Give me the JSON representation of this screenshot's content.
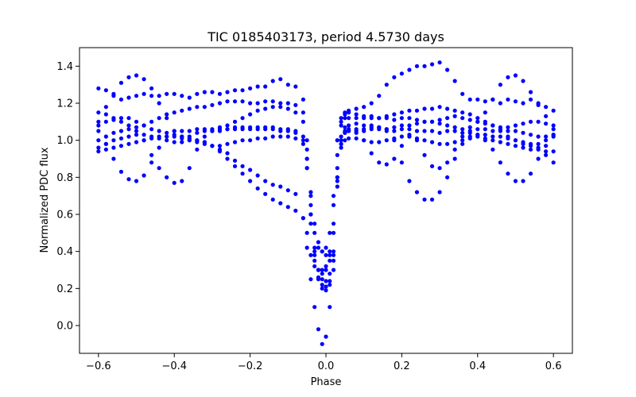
{
  "chart_data": {
    "type": "scatter",
    "title": "TIC 0185403173, period 4.5730 days",
    "xlabel": "Phase",
    "ylabel": "Normalized PDC flux",
    "xlim": [
      -0.65,
      0.65
    ],
    "ylim": [
      -0.15,
      1.5
    ],
    "xticks": [
      "−0.6",
      "−0.4",
      "−0.2",
      "0.0",
      "0.2",
      "0.4",
      "0.6"
    ],
    "xtick_values": [
      -0.6,
      -0.4,
      -0.2,
      0.0,
      0.2,
      0.4,
      0.6
    ],
    "yticks": [
      "0.0",
      "0.2",
      "0.4",
      "0.6",
      "0.8",
      "1.0",
      "1.2",
      "1.4"
    ],
    "ytick_values": [
      0.0,
      0.2,
      0.4,
      0.6,
      0.8,
      1.0,
      1.2,
      1.4
    ],
    "grid": false,
    "marker_color": "#0000ff",
    "series": [
      {
        "x": [
          -0.6,
          -0.58,
          -0.56,
          -0.54,
          -0.52,
          -0.5,
          -0.48,
          -0.46,
          -0.44,
          -0.42,
          -0.4,
          -0.38,
          -0.36,
          -0.34,
          -0.32,
          -0.3,
          -0.28,
          -0.26,
          -0.24,
          -0.22,
          -0.2,
          -0.18,
          -0.16,
          -0.14,
          -0.12,
          -0.1,
          -0.08,
          -0.06,
          -0.05,
          -0.04,
          -0.03,
          -0.02,
          -0.01,
          0.0,
          0.01,
          0.02,
          0.03,
          0.04,
          0.05,
          0.06,
          0.08,
          0.1,
          0.12,
          0.14,
          0.16,
          0.18,
          0.2,
          0.22,
          0.24,
          0.26,
          0.28,
          0.3,
          0.32,
          0.34,
          0.36,
          0.38,
          0.4,
          0.42,
          0.44,
          0.46,
          0.48,
          0.5,
          0.52,
          0.54,
          0.56,
          0.58,
          0.6
        ],
        "y": [
          1.28,
          1.27,
          1.24,
          1.22,
          1.23,
          1.24,
          1.25,
          1.24,
          1.24,
          1.25,
          1.25,
          1.24,
          1.23,
          1.25,
          1.26,
          1.26,
          1.25,
          1.26,
          1.27,
          1.27,
          1.28,
          1.29,
          1.29,
          1.32,
          1.33,
          1.3,
          1.29,
          1.22,
          0.95,
          0.72,
          0.55,
          0.45,
          0.4,
          0.38,
          0.4,
          0.65,
          1.0,
          1.1,
          1.14,
          1.16,
          1.17,
          1.18,
          1.2,
          1.24,
          1.3,
          1.34,
          1.36,
          1.38,
          1.4,
          1.4,
          1.41,
          1.42,
          1.38,
          1.32,
          1.25,
          1.22,
          1.22,
          1.21,
          1.22,
          1.2,
          1.22,
          1.21,
          1.2,
          1.22,
          1.19,
          1.18,
          1.16
        ]
      },
      {
        "x": [
          -0.6,
          -0.58,
          -0.56,
          -0.54,
          -0.52,
          -0.5,
          -0.48,
          -0.46,
          -0.44,
          -0.42,
          -0.4,
          -0.38,
          -0.36,
          -0.34,
          -0.32,
          -0.3,
          -0.28,
          -0.26,
          -0.24,
          -0.22,
          -0.2,
          -0.18,
          -0.16,
          -0.14,
          -0.12,
          -0.1,
          -0.08,
          -0.06,
          -0.05,
          -0.04,
          -0.03,
          -0.02,
          -0.01,
          0.0,
          0.01,
          0.02,
          0.03,
          0.04,
          0.05,
          0.06,
          0.08,
          0.1,
          0.12,
          0.14,
          0.16,
          0.18,
          0.2,
          0.22,
          0.24,
          0.26,
          0.28,
          0.3,
          0.32,
          0.34,
          0.36,
          0.38,
          0.4,
          0.42,
          0.44,
          0.46,
          0.48,
          0.5,
          0.52,
          0.54,
          0.56,
          0.58,
          0.6
        ],
        "y": [
          1.1,
          1.18,
          1.25,
          1.31,
          1.34,
          1.35,
          1.33,
          1.28,
          1.2,
          1.12,
          1.05,
          1.02,
          1.02,
          1.04,
          1.05,
          1.06,
          1.07,
          1.08,
          1.1,
          1.12,
          1.14,
          1.16,
          1.17,
          1.18,
          1.18,
          1.17,
          1.15,
          1.1,
          0.9,
          0.6,
          0.4,
          0.3,
          0.28,
          0.3,
          0.35,
          0.5,
          0.85,
          1.02,
          1.07,
          1.08,
          1.09,
          1.08,
          1.08,
          1.07,
          1.06,
          1.07,
          1.08,
          1.08,
          1.09,
          1.1,
          1.1,
          1.09,
          1.08,
          1.07,
          1.06,
          1.07,
          1.1,
          1.15,
          1.22,
          1.3,
          1.34,
          1.35,
          1.32,
          1.26,
          1.2,
          1.13,
          1.06
        ]
      },
      {
        "x": [
          -0.6,
          -0.58,
          -0.56,
          -0.54,
          -0.52,
          -0.5,
          -0.48,
          -0.46,
          -0.44,
          -0.42,
          -0.4,
          -0.38,
          -0.36,
          -0.34,
          -0.32,
          -0.3,
          -0.28,
          -0.26,
          -0.24,
          -0.22,
          -0.2,
          -0.18,
          -0.16,
          -0.14,
          -0.12,
          -0.1,
          -0.08,
          -0.06,
          -0.05,
          -0.04,
          -0.03,
          -0.02,
          -0.01,
          0.0,
          0.01,
          0.02,
          0.03,
          0.04,
          0.05,
          0.06,
          0.08,
          0.1,
          0.12,
          0.14,
          0.16,
          0.18,
          0.2,
          0.22,
          0.24,
          0.26,
          0.28,
          0.3,
          0.32,
          0.34,
          0.36,
          0.38,
          0.4,
          0.42,
          0.44,
          0.46,
          0.48,
          0.5,
          0.52,
          0.54,
          0.56,
          0.58,
          0.6
        ],
        "y": [
          1.05,
          0.98,
          0.9,
          0.83,
          0.79,
          0.78,
          0.81,
          0.88,
          0.96,
          1.02,
          1.05,
          1.05,
          1.05,
          1.06,
          1.06,
          1.05,
          1.05,
          1.06,
          1.06,
          1.06,
          1.07,
          1.07,
          1.06,
          1.06,
          1.05,
          1.05,
          1.04,
          1.0,
          0.85,
          0.55,
          0.35,
          0.25,
          0.2,
          0.19,
          0.22,
          0.35,
          0.75,
          0.98,
          1.04,
          1.05,
          1.05,
          1.05,
          1.06,
          1.06,
          1.05,
          1.05,
          1.06,
          1.06,
          1.05,
          1.05,
          1.05,
          1.04,
          1.05,
          1.05,
          1.04,
          1.04,
          1.03,
          1.0,
          0.95,
          0.88,
          0.82,
          0.78,
          0.78,
          0.82,
          0.9,
          0.97,
          1.02
        ]
      },
      {
        "x": [
          -0.6,
          -0.58,
          -0.56,
          -0.54,
          -0.52,
          -0.5,
          -0.48,
          -0.46,
          -0.44,
          -0.42,
          -0.4,
          -0.38,
          -0.36,
          -0.34,
          -0.32,
          -0.3,
          -0.28,
          -0.26,
          -0.24,
          -0.22,
          -0.2,
          -0.18,
          -0.16,
          -0.14,
          -0.12,
          -0.1,
          -0.08,
          -0.06,
          -0.05,
          -0.04,
          -0.03,
          -0.02,
          -0.01,
          0.0,
          0.01,
          0.02,
          0.03,
          0.04,
          0.05,
          0.06,
          0.08,
          0.1,
          0.12,
          0.14,
          0.16,
          0.18,
          0.2,
          0.22,
          0.24,
          0.26,
          0.28,
          0.3,
          0.32,
          0.34,
          0.36,
          0.38,
          0.4,
          0.42,
          0.44,
          0.46,
          0.48,
          0.5,
          0.52,
          0.54,
          0.56,
          0.58,
          0.6
        ],
        "y": [
          1.0,
          1.02,
          1.04,
          1.05,
          1.06,
          1.05,
          1.0,
          0.92,
          0.85,
          0.8,
          0.77,
          0.78,
          0.85,
          0.95,
          1.02,
          1.05,
          1.06,
          1.06,
          1.07,
          1.07,
          1.06,
          1.06,
          1.07,
          1.07,
          1.06,
          1.06,
          1.05,
          1.02,
          0.9,
          0.65,
          0.42,
          0.3,
          0.25,
          0.24,
          0.28,
          0.4,
          0.8,
          1.0,
          1.04,
          1.05,
          1.04,
          1.0,
          0.93,
          0.88,
          0.87,
          0.9,
          0.97,
          1.03,
          1.0,
          0.92,
          0.86,
          0.85,
          0.88,
          0.95,
          1.02,
          1.05,
          1.06,
          1.06,
          1.05,
          1.06,
          1.05,
          1.05,
          1.04,
          1.03,
          1.02,
          1.02,
          1.03
        ]
      },
      {
        "x": [
          -0.6,
          -0.58,
          -0.56,
          -0.54,
          -0.52,
          -0.5,
          -0.48,
          -0.46,
          -0.44,
          -0.42,
          -0.4,
          -0.38,
          -0.36,
          -0.34,
          -0.32,
          -0.3,
          -0.28,
          -0.26,
          -0.24,
          -0.22,
          -0.2,
          -0.18,
          -0.16,
          -0.14,
          -0.12,
          -0.1,
          -0.08,
          -0.06,
          -0.05,
          -0.04,
          -0.03,
          -0.02,
          -0.01,
          0.0,
          0.01,
          0.02,
          0.03,
          0.04,
          0.05,
          0.06,
          0.08,
          0.1,
          0.12,
          0.14,
          0.16,
          0.18,
          0.2,
          0.22,
          0.24,
          0.26,
          0.28,
          0.3,
          0.32,
          0.34,
          0.36,
          0.38,
          0.4,
          0.42,
          0.44,
          0.46,
          0.48,
          0.5,
          0.52,
          0.54,
          0.56,
          0.58,
          0.6
        ],
        "y": [
          0.96,
          0.98,
          1.0,
          1.01,
          1.02,
          1.03,
          1.03,
          1.02,
          1.01,
          1.0,
          0.99,
          0.99,
          1.0,
          1.0,
          0.99,
          0.97,
          0.95,
          0.93,
          0.89,
          0.86,
          0.84,
          0.81,
          0.78,
          0.76,
          0.75,
          0.73,
          0.71,
          0.58,
          0.42,
          0.25,
          0.1,
          -0.02,
          -0.1,
          -0.06,
          0.1,
          0.3,
          0.8,
          0.98,
          1.05,
          1.06,
          1.06,
          1.06,
          1.07,
          1.07,
          1.06,
          1.0,
          0.88,
          0.78,
          0.72,
          0.68,
          0.68,
          0.72,
          0.8,
          0.9,
          0.98,
          1.02,
          1.03,
          1.03,
          1.02,
          1.02,
          1.01,
          1.0,
          0.99,
          0.98,
          0.96,
          0.92,
          0.88
        ]
      },
      {
        "x": [
          -0.6,
          -0.58,
          -0.56,
          -0.54,
          -0.52,
          -0.5,
          -0.48,
          -0.46,
          -0.44,
          -0.42,
          -0.4,
          -0.38,
          -0.36,
          -0.34,
          -0.32,
          -0.3,
          -0.28,
          -0.26,
          -0.24,
          -0.22,
          -0.2,
          -0.18,
          -0.16,
          -0.14,
          -0.12,
          -0.1,
          -0.08,
          -0.06,
          -0.05,
          -0.04,
          -0.03,
          -0.02,
          -0.01,
          0.0,
          0.01,
          0.02,
          0.03,
          0.04,
          0.05,
          0.06,
          0.08,
          0.1,
          0.12,
          0.14,
          0.16,
          0.18,
          0.2,
          0.22,
          0.24,
          0.26,
          0.28,
          0.3,
          0.32,
          0.34,
          0.36,
          0.38,
          0.4,
          0.42,
          0.44,
          0.46,
          0.48,
          0.5,
          0.52,
          0.54,
          0.56,
          0.58,
          0.6
        ],
        "y": [
          1.08,
          1.1,
          1.11,
          1.12,
          1.12,
          1.1,
          1.08,
          1.06,
          1.05,
          1.04,
          1.03,
          1.02,
          1.01,
          1.0,
          0.99,
          0.97,
          0.94,
          0.9,
          0.86,
          0.82,
          0.78,
          0.74,
          0.71,
          0.68,
          0.66,
          0.64,
          0.62,
          0.58,
          0.5,
          0.38,
          0.32,
          0.3,
          0.3,
          0.32,
          0.38,
          0.55,
          0.92,
          1.08,
          1.12,
          1.12,
          1.12,
          1.12,
          1.13,
          1.12,
          1.12,
          1.11,
          1.12,
          1.12,
          1.11,
          1.1,
          1.1,
          1.11,
          1.12,
          1.13,
          1.12,
          1.11,
          1.1,
          1.09,
          1.08,
          1.07,
          1.07,
          1.08,
          1.09,
          1.1,
          1.1,
          1.09,
          1.08
        ]
      },
      {
        "x": [
          -0.6,
          -0.58,
          -0.56,
          -0.54,
          -0.52,
          -0.5,
          -0.48,
          -0.46,
          -0.44,
          -0.42,
          -0.4,
          -0.38,
          -0.36,
          -0.34,
          -0.32,
          -0.3,
          -0.28,
          -0.26,
          -0.24,
          -0.22,
          -0.2,
          -0.18,
          -0.16,
          -0.14,
          -0.12,
          -0.1,
          -0.08,
          -0.06,
          -0.05,
          -0.04,
          -0.03,
          -0.02,
          -0.01,
          0.0,
          0.01,
          0.02,
          0.03,
          0.04,
          0.05,
          0.06,
          0.08,
          0.1,
          0.12,
          0.14,
          0.16,
          0.18,
          0.2,
          0.22,
          0.24,
          0.26,
          0.28,
          0.3,
          0.32,
          0.34,
          0.36,
          0.38,
          0.4,
          0.42,
          0.44,
          0.46,
          0.48,
          0.5,
          0.52,
          0.54,
          0.56,
          0.58,
          0.6
        ],
        "y": [
          1.15,
          1.14,
          1.12,
          1.1,
          1.08,
          1.07,
          1.08,
          1.1,
          1.12,
          1.14,
          1.15,
          1.16,
          1.17,
          1.18,
          1.18,
          1.19,
          1.2,
          1.21,
          1.21,
          1.21,
          1.2,
          1.2,
          1.21,
          1.21,
          1.2,
          1.2,
          1.19,
          1.15,
          1.0,
          0.7,
          0.5,
          0.42,
          0.4,
          0.42,
          0.5,
          0.7,
          1.0,
          1.12,
          1.15,
          1.15,
          1.14,
          1.13,
          1.12,
          1.12,
          1.13,
          1.14,
          1.15,
          1.16,
          1.16,
          1.17,
          1.17,
          1.18,
          1.17,
          1.16,
          1.15,
          1.14,
          1.12,
          1.1,
          1.08,
          1.05,
          1.02,
          1.0,
          0.98,
          0.97,
          0.98,
          1.0,
          1.03
        ]
      },
      {
        "x": [
          -0.6,
          -0.58,
          -0.56,
          -0.54,
          -0.52,
          -0.5,
          -0.48,
          -0.46,
          -0.44,
          -0.42,
          -0.4,
          -0.38,
          -0.36,
          -0.34,
          -0.32,
          -0.3,
          -0.28,
          -0.26,
          -0.24,
          -0.22,
          -0.2,
          -0.18,
          -0.16,
          -0.14,
          -0.12,
          -0.1,
          -0.08,
          -0.06,
          -0.05,
          -0.04,
          -0.03,
          -0.02,
          -0.01,
          0.0,
          0.01,
          0.02,
          0.03,
          0.04,
          0.05,
          0.06,
          0.08,
          0.1,
          0.12,
          0.14,
          0.16,
          0.18,
          0.2,
          0.22,
          0.24,
          0.26,
          0.28,
          0.3,
          0.32,
          0.34,
          0.36,
          0.38,
          0.4,
          0.42,
          0.44,
          0.46,
          0.48,
          0.5,
          0.52,
          0.54,
          0.56,
          0.58,
          0.6
        ],
        "y": [
          0.94,
          0.95,
          0.96,
          0.97,
          0.98,
          0.99,
          1.0,
          1.01,
          1.02,
          1.02,
          1.02,
          1.01,
          1.0,
          0.99,
          0.98,
          0.97,
          0.97,
          0.98,
          0.99,
          1.0,
          1.0,
          1.01,
          1.01,
          1.02,
          1.02,
          1.02,
          1.01,
          0.98,
          0.85,
          0.6,
          0.38,
          0.26,
          0.22,
          0.21,
          0.24,
          0.38,
          0.78,
          0.96,
          1.0,
          1.01,
          1.01,
          1.0,
          0.99,
          0.99,
          1.0,
          1.01,
          1.02,
          1.02,
          1.01,
          1.0,
          0.99,
          0.98,
          0.98,
          0.99,
          1.0,
          1.01,
          1.02,
          1.01,
          1.0,
          0.99,
          0.98,
          0.97,
          0.96,
          0.95,
          0.95,
          0.94,
          0.94
        ]
      }
    ]
  }
}
